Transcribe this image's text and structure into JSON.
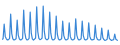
{
  "chart_data": {
    "type": "line",
    "color": "#3a87d6",
    "tick_labels": false,
    "grid": false,
    "ylim": [
      0,
      100
    ],
    "categories": [
      null,
      null,
      null,
      null,
      null,
      null,
      null,
      null,
      null,
      null,
      null,
      null,
      null,
      null,
      null,
      null,
      null,
      null,
      null,
      null,
      null,
      null,
      null,
      null,
      null,
      null,
      null,
      null,
      null,
      null,
      null,
      null,
      null,
      null,
      null,
      null,
      null,
      null,
      null,
      null,
      null,
      null,
      null,
      null,
      null,
      null,
      null,
      null,
      null,
      null,
      null,
      null,
      null,
      null,
      null,
      null,
      null,
      null,
      null,
      null,
      null,
      null,
      null,
      null,
      null,
      null,
      null,
      null,
      null,
      null,
      null,
      null,
      null,
      null,
      null,
      null,
      null,
      null,
      null,
      null,
      null,
      null,
      null,
      null,
      null,
      null,
      null,
      null,
      null,
      null,
      null,
      null,
      null,
      null,
      null,
      null,
      null,
      null,
      null,
      null,
      null,
      null,
      null,
      null,
      null,
      null,
      null,
      null
    ],
    "values": [
      6,
      8,
      45,
      14,
      8,
      5,
      6,
      9,
      70,
      21,
      8,
      5,
      6,
      8,
      55,
      17,
      8,
      5,
      6,
      9,
      80,
      24,
      9,
      5,
      6,
      9,
      75,
      22,
      8,
      5,
      7,
      10,
      88,
      26,
      9,
      6,
      7,
      10,
      90,
      27,
      9,
      6,
      6,
      9,
      75,
      22,
      8,
      5,
      6,
      9,
      65,
      20,
      8,
      5,
      6,
      8,
      52,
      16,
      8,
      5,
      6,
      8,
      48,
      14,
      7,
      5,
      6,
      8,
      58,
      17,
      8,
      5,
      6,
      8,
      52,
      16,
      7,
      5,
      6,
      8,
      48,
      14,
      7,
      5,
      6,
      7,
      42,
      13,
      7,
      5,
      5,
      7,
      35,
      11,
      6,
      4,
      5,
      7,
      30,
      9,
      6,
      4,
      5,
      6,
      20,
      7,
      5,
      4
    ]
  }
}
